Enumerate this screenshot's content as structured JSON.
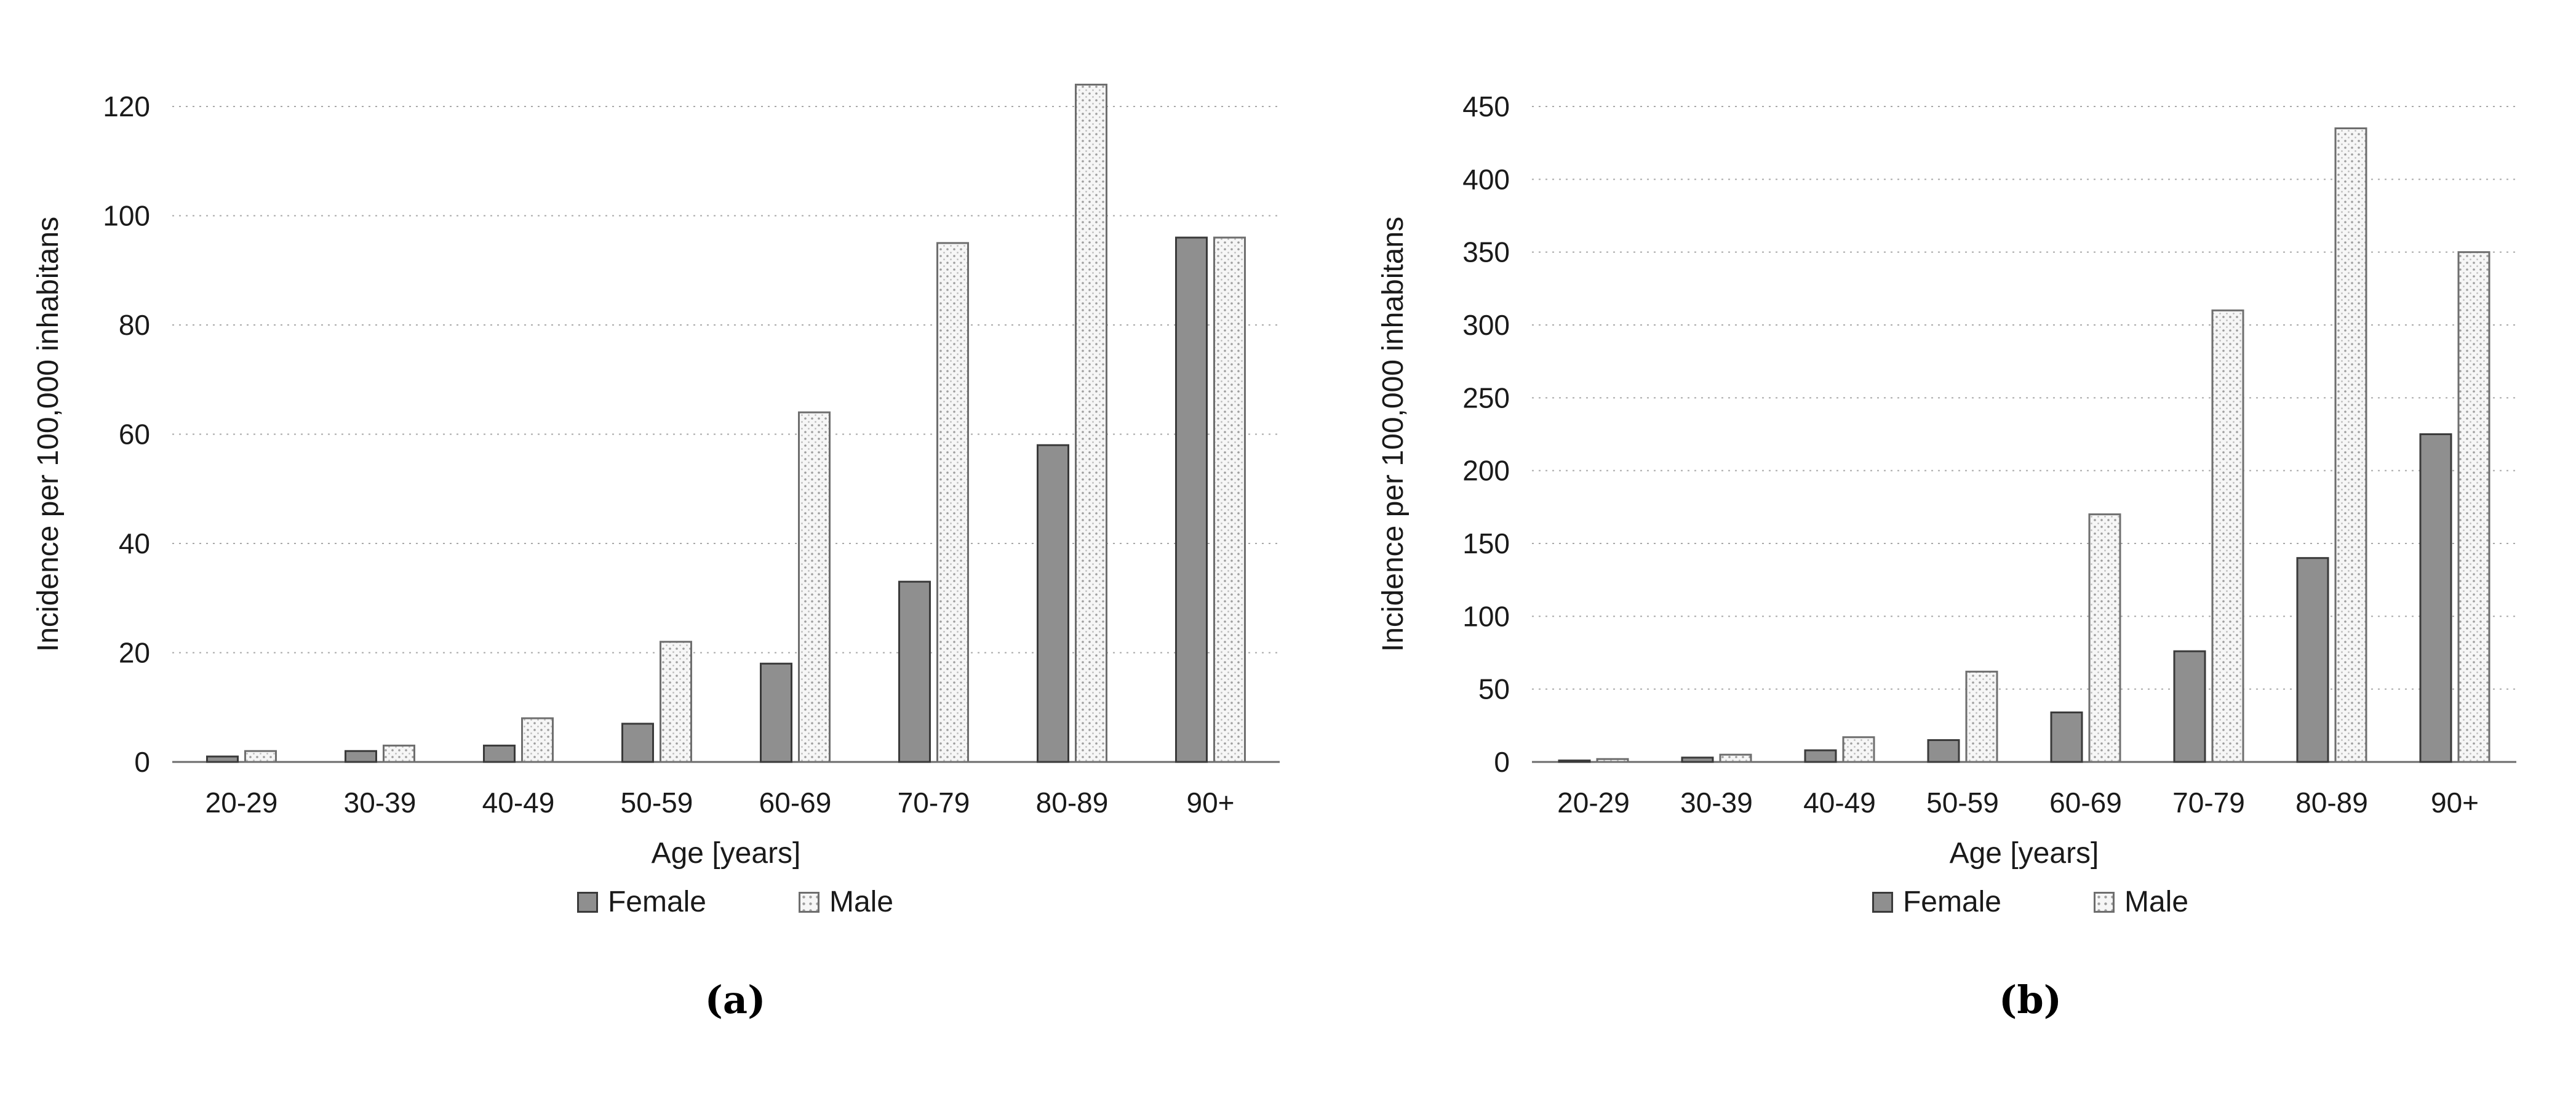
{
  "figure": {
    "background": "#ffffff",
    "grid_color": "#a9a9a9",
    "axis_color": "#6b6b6b",
    "text_color": "#1a1a1a"
  },
  "chart_data": [
    {
      "id": "a",
      "type": "bar",
      "caption": "(a)",
      "ylabel": "Incidence per 100,000 inhabitans",
      "xlabel": "Age [years]",
      "categories": [
        "20-29",
        "30-39",
        "40-49",
        "50-59",
        "60-69",
        "70-79",
        "80-89",
        "90+"
      ],
      "series": [
        {
          "name": "Female",
          "values": [
            1,
            2,
            3,
            7,
            18,
            33,
            58,
            96
          ],
          "fill": "#8f8f8f",
          "stroke": "#3a3a3a",
          "pattern": "solid"
        },
        {
          "name": "Male",
          "values": [
            2,
            3,
            8,
            22,
            64,
            95,
            124,
            96
          ],
          "fill": "#f6f6f6",
          "stroke": "#6e6e6e",
          "pattern": "dots"
        }
      ],
      "ylim": [
        0,
        120
      ],
      "ytick_step": 20,
      "yticks": [
        0,
        20,
        40,
        60,
        80,
        100,
        120
      ],
      "grid": "horizontal-dotted",
      "legend_position": "bottom"
    },
    {
      "id": "b",
      "type": "bar",
      "caption": "(b)",
      "ylabel": "Incidence per 100,000 inhabitans",
      "xlabel": "Age [years]",
      "categories": [
        "20-29",
        "30-39",
        "40-49",
        "50-59",
        "60-69",
        "70-79",
        "80-89",
        "90+"
      ],
      "series": [
        {
          "name": "Female",
          "values": [
            1,
            3,
            8,
            15,
            34,
            76,
            140,
            225
          ],
          "fill": "#8f8f8f",
          "stroke": "#3a3a3a",
          "pattern": "solid"
        },
        {
          "name": "Male",
          "values": [
            2,
            5,
            17,
            62,
            170,
            310,
            435,
            350
          ],
          "fill": "#f6f6f6",
          "stroke": "#6e6e6e",
          "pattern": "dots"
        }
      ],
      "ylim": [
        0,
        450
      ],
      "ytick_step": 50,
      "yticks": [
        0,
        50,
        100,
        150,
        200,
        250,
        300,
        350,
        400,
        450
      ],
      "grid": "horizontal-dotted",
      "legend_position": "bottom"
    }
  ]
}
